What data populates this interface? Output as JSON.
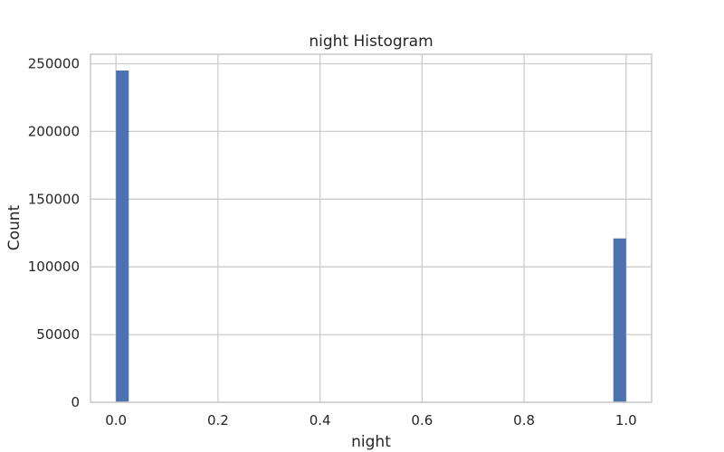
{
  "chart_data": {
    "type": "bar",
    "title": "night Histogram",
    "xlabel": "night",
    "ylabel": "Count",
    "bar_color": "#4c72b0",
    "x_range": [
      -0.05,
      1.05
    ],
    "ylim": [
      0,
      257000
    ],
    "xticks": [
      0.0,
      0.2,
      0.4,
      0.6,
      0.8,
      1.0
    ],
    "xtick_labels": [
      "0.0",
      "0.2",
      "0.4",
      "0.6",
      "0.8",
      "1.0"
    ],
    "yticks": [
      0,
      50000,
      100000,
      150000,
      200000,
      250000
    ],
    "ytick_labels": [
      "0",
      "50000",
      "100000",
      "150000",
      "200000",
      "250000"
    ],
    "grid": true,
    "bins": [
      {
        "x0": 0.0,
        "x1": 0.025,
        "count": 245000
      },
      {
        "x0": 0.975,
        "x1": 1.0,
        "count": 121000
      }
    ]
  }
}
